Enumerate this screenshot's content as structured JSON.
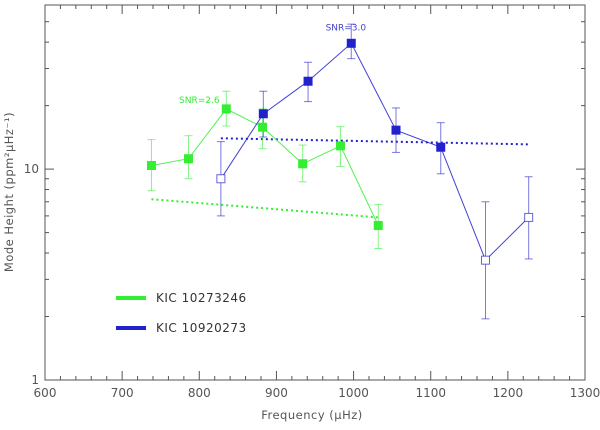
{
  "chart_data": {
    "type": "line",
    "xlabel": "Frequency (μHz)",
    "ylabel": "Mode Height (ppm²μHz⁻¹)",
    "xlim": [
      600,
      1300
    ],
    "ylim": [
      1,
      60
    ],
    "y_scale": "log",
    "xticks": [
      600,
      700,
      800,
      900,
      1000,
      1100,
      1200,
      1300
    ],
    "xtick_labels": [
      "600",
      "700",
      "800",
      "900",
      "1000",
      "1100",
      "1200",
      "1300"
    ],
    "yticks": [
      1,
      10
    ],
    "ytick_labels": [
      "1",
      "10"
    ],
    "grid": false,
    "legend_position": "lower-left",
    "series": [
      {
        "name": "KIC 10273246",
        "color": "#33ee33",
        "points": [
          {
            "x": 738,
            "y": 10.4,
            "lo": 7.9,
            "hi": 13.8,
            "filled": true
          },
          {
            "x": 786,
            "y": 11.2,
            "lo": 9.0,
            "hi": 14.4,
            "filled": true
          },
          {
            "x": 835,
            "y": 19.3,
            "lo": 16.0,
            "hi": 23.4,
            "filled": true
          },
          {
            "x": 882,
            "y": 15.8,
            "lo": 12.5,
            "hi": 19.3,
            "filled": true
          },
          {
            "x": 934,
            "y": 10.6,
            "lo": 8.7,
            "hi": 13.0,
            "filled": true
          },
          {
            "x": 983,
            "y": 12.9,
            "lo": 10.3,
            "hi": 15.9,
            "filled": true
          },
          {
            "x": 1032,
            "y": 5.4,
            "lo": 4.2,
            "hi": 6.8,
            "filled": true
          }
        ],
        "trend": {
          "x": [
            738,
            1032
          ],
          "y": [
            7.2,
            5.9
          ]
        }
      },
      {
        "name": "KIC 10920273",
        "color": "#2222cc",
        "points": [
          {
            "x": 828,
            "y": 9.0,
            "lo": 6.0,
            "hi": 13.5,
            "filled": false
          },
          {
            "x": 883,
            "y": 18.3,
            "lo": 14.2,
            "hi": 23.4,
            "filled": true
          },
          {
            "x": 941,
            "y": 26.1,
            "lo": 20.9,
            "hi": 32.1,
            "filled": true
          },
          {
            "x": 997,
            "y": 39.5,
            "lo": 33.4,
            "hi": 48.7,
            "filled": true
          },
          {
            "x": 1055,
            "y": 15.3,
            "lo": 12.0,
            "hi": 19.5,
            "filled": true
          },
          {
            "x": 1113,
            "y": 12.7,
            "lo": 9.5,
            "hi": 16.6,
            "filled": true
          },
          {
            "x": 1171,
            "y": 3.7,
            "lo": 1.95,
            "hi": 7.0,
            "filled": false
          },
          {
            "x": 1227,
            "y": 5.9,
            "lo": 3.75,
            "hi": 9.2,
            "filled": false
          }
        ],
        "trend": {
          "x": [
            828,
            1227
          ],
          "y": [
            14.0,
            13.1
          ]
        }
      }
    ],
    "annotations": [
      {
        "text": "SNR=2.6",
        "x": 800,
        "y": 20.6,
        "color": "#33ee33"
      },
      {
        "text": "SNR=3.0",
        "x": 990,
        "y": 45.5,
        "color": "#4444cc"
      }
    ]
  }
}
